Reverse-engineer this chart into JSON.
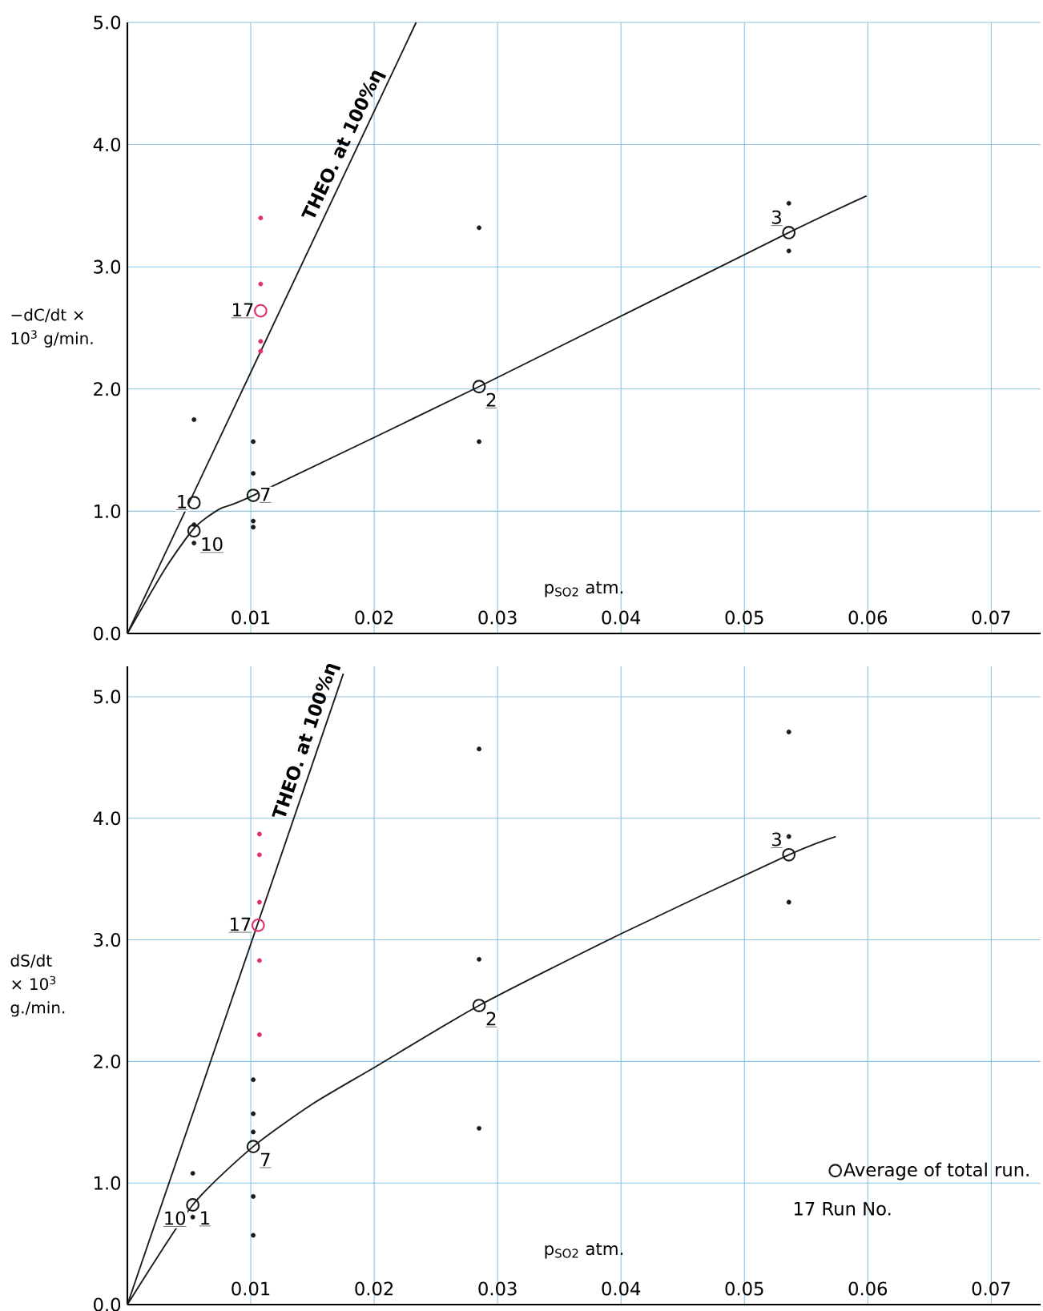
{
  "chart_data": [
    {
      "type": "scatter",
      "xlabel": "p$_{SO2}$ atm.",
      "ylabel": "−dC/dt × 10$^{3}$ g/min.",
      "xlim": [
        0,
        0.074
      ],
      "ylim": [
        0,
        5.0
      ],
      "xticks": [
        0.01,
        0.02,
        0.03,
        0.04,
        0.05,
        0.06,
        0.07
      ],
      "yticks": [
        {
          "value": 0,
          "label": "0.0"
        },
        {
          "value": 1,
          "label": "1.0"
        },
        {
          "value": 2,
          "label": "2.0"
        },
        {
          "value": 3,
          "label": "3.0"
        },
        {
          "value": 4,
          "label": "4.0"
        },
        {
          "value": 5,
          "label": "5.0"
        }
      ],
      "grid": true,
      "series": [
        {
          "marker": "circle",
          "x": [
            0.0054,
            0.0054,
            0.0102,
            0.0108,
            0.0285,
            0.0536
          ],
          "values": [
            1.07,
            0.84,
            1.13,
            2.64,
            2.02,
            3.28
          ],
          "colors": [
            "#1a1a1a",
            "#1a1a1a",
            "#1a1a1a",
            "#e0306a",
            "#1a1a1a",
            "#1a1a1a"
          ]
        },
        {
          "marker": "circle",
          "color": "#1a1a1a",
          "x": [
            0.0054,
            0.0054,
            0.0054,
            0.0102,
            0.0102,
            0.0102,
            0.0102,
            0.0285,
            0.0285,
            0.0536,
            0.0536
          ],
          "values": [
            1.75,
            0.89,
            0.74,
            1.57,
            1.31,
            0.92,
            0.87,
            3.32,
            1.57,
            3.52,
            3.13
          ]
        },
        {
          "marker": "circle",
          "color": "#e0306a",
          "x": [
            0.0108,
            0.0108,
            0.0108,
            0.0108
          ],
          "values": [
            3.4,
            2.86,
            2.39,
            2.31
          ]
        },
        {
          "type": "line",
          "color": "#1a1a1a",
          "x": [
            0,
            0.0234
          ],
          "values": [
            0,
            5.0
          ]
        },
        {
          "type": "line",
          "color": "#1a1a1a",
          "x": [
            0,
            0.003,
            0.0054,
            0.0075,
            0.0102,
            0.0285,
            0.0536,
            0.0599
          ],
          "values": [
            0,
            0.52,
            0.86,
            1.02,
            1.13,
            2.02,
            3.28,
            3.58
          ]
        }
      ],
      "annotations": [
        {
          "text": "THEO. at 100%η",
          "x": 0.0185,
          "y": 3.95
        },
        {
          "text": "1",
          "x": 0.0054,
          "y": 1.07
        },
        {
          "text": "10",
          "x": 0.0054,
          "y": 0.84
        },
        {
          "text": "7",
          "x": 0.0102,
          "y": 1.13
        },
        {
          "text": "17",
          "x": 0.0108,
          "y": 2.64
        },
        {
          "text": "2",
          "x": 0.0285,
          "y": 2.02
        },
        {
          "text": "3",
          "x": 0.0536,
          "y": 3.28
        }
      ]
    },
    {
      "type": "scatter",
      "xlabel": "p$_{SO2}$ atm.",
      "ylabel": "dS/dt × 10$^{3}$ g./min.",
      "xlim": [
        0,
        0.074
      ],
      "ylim": [
        0,
        5.25
      ],
      "xticks": [
        0.01,
        0.02,
        0.03,
        0.04,
        0.05,
        0.06,
        0.07
      ],
      "yticks": [
        {
          "value": 0,
          "label": "0.0"
        },
        {
          "value": 1,
          "label": "1.0"
        },
        {
          "value": 2,
          "label": "2.0"
        },
        {
          "value": 3,
          "label": "3.0"
        },
        {
          "value": 4,
          "label": "4.0"
        },
        {
          "value": 5,
          "label": "5.0"
        }
      ],
      "grid": true,
      "legend": "bottom right",
      "series": [
        {
          "marker": "circle",
          "name": "Average of total run.",
          "x": [
            0.0053,
            0.0102,
            0.0106,
            0.0285,
            0.0536
          ],
          "values": [
            0.82,
            1.3,
            3.12,
            2.46,
            3.7
          ],
          "colors": [
            "#1a1a1a",
            "#1a1a1a",
            "#e0306a",
            "#1a1a1a",
            "#1a1a1a"
          ]
        },
        {
          "marker": "circle",
          "color": "#1a1a1a",
          "x": [
            0.0053,
            0.0053,
            0.0102,
            0.0102,
            0.0102,
            0.0102,
            0.0102,
            0.0285,
            0.0285,
            0.0285,
            0.0536,
            0.0536,
            0.0536
          ],
          "values": [
            1.08,
            0.72,
            1.85,
            1.57,
            1.42,
            0.89,
            0.57,
            4.57,
            2.84,
            1.45,
            4.71,
            3.85,
            3.31
          ]
        },
        {
          "marker": "circle",
          "color": "#e0306a",
          "x": [
            0.0107,
            0.0107,
            0.0107,
            0.0107,
            0.0107
          ],
          "values": [
            3.87,
            3.7,
            3.31,
            2.83,
            2.22
          ]
        },
        {
          "type": "line",
          "color": "#1a1a1a",
          "x": [
            0,
            0.0175
          ],
          "values": [
            0,
            5.19
          ]
        },
        {
          "type": "line",
          "color": "#1a1a1a",
          "x": [
            0,
            0.0053,
            0.0102,
            0.015,
            0.02,
            0.0285,
            0.04,
            0.0536,
            0.0574
          ],
          "values": [
            0,
            0.82,
            1.3,
            1.65,
            1.95,
            2.46,
            3.05,
            3.7,
            3.85
          ]
        }
      ],
      "annotations": [
        {
          "text": "THEO. at 100%η",
          "x": 0.0155,
          "y": 4.6
        },
        {
          "text": "10",
          "x": 0.0053,
          "y": 0.82
        },
        {
          "text": "1",
          "x": 0.0053,
          "y": 0.82
        },
        {
          "text": "7",
          "x": 0.0102,
          "y": 1.3
        },
        {
          "text": "17",
          "x": 0.0106,
          "y": 3.12
        },
        {
          "text": "2",
          "x": 0.0285,
          "y": 2.46
        },
        {
          "text": "3",
          "x": 0.0536,
          "y": 3.7
        },
        "17 Run No."
      ]
    }
  ]
}
